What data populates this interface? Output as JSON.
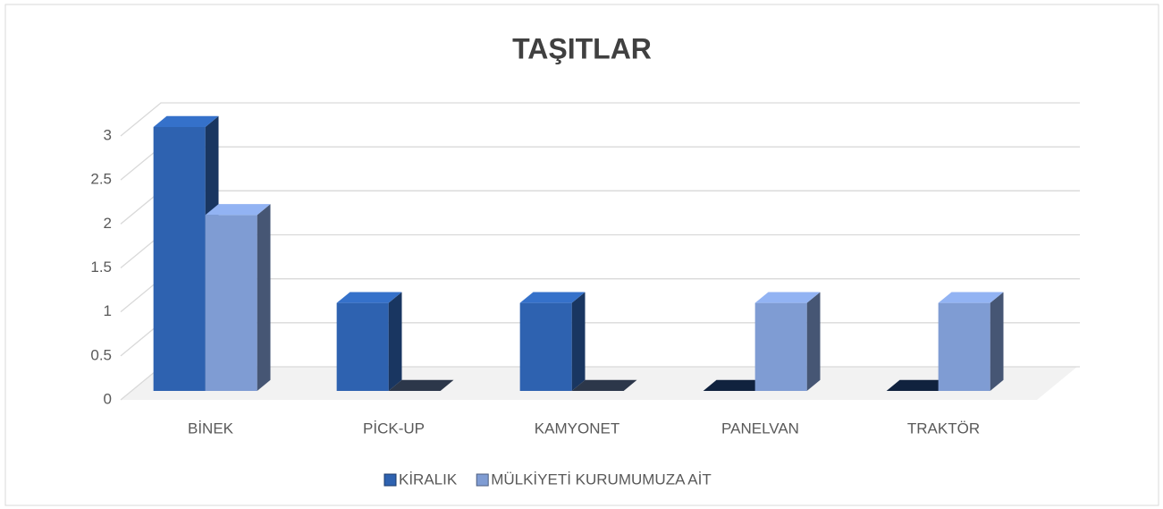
{
  "chart_data": {
    "type": "bar3d",
    "title": "TAŞITLAR",
    "categories": [
      "BİNEK",
      "PİCK-UP",
      "KAMYONET",
      "PANELVAN",
      "TRAKTÖR"
    ],
    "series": [
      {
        "name": "KİRALIK",
        "color": "#2e62b0",
        "values": [
          3,
          1,
          1,
          0,
          0
        ]
      },
      {
        "name": "MÜLKİYETİ KURUMUMUZA AİT",
        "color": "#7f9cd3",
        "values": [
          2,
          0,
          0,
          1,
          1
        ]
      }
    ],
    "ylim": [
      0,
      3
    ],
    "yticks": [
      0,
      0.5,
      1,
      1.5,
      2,
      2.5,
      3
    ],
    "grid": true,
    "legend": "bottom"
  }
}
